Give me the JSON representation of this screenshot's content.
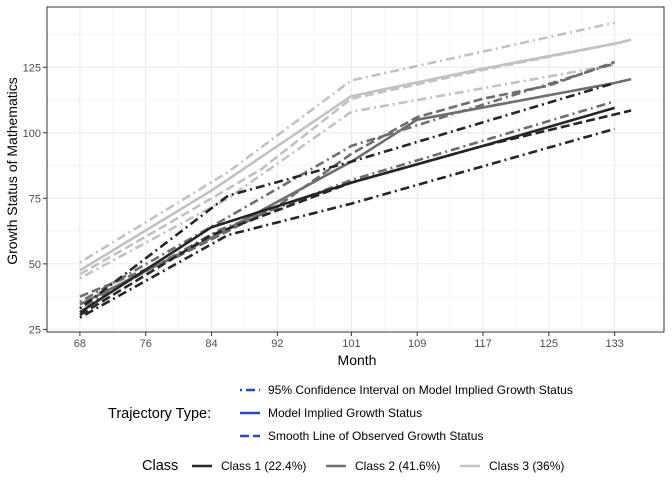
{
  "chart_data": {
    "type": "line",
    "xlabel": "Month",
    "ylabel": "Growth Status of Mathematics",
    "xlim": [
      64,
      139
    ],
    "ylim": [
      24,
      148
    ],
    "x_ticks": [
      68,
      76,
      84,
      92,
      101,
      109,
      117,
      125,
      133
    ],
    "y_ticks": [
      25,
      50,
      75,
      100,
      125
    ],
    "grid": true,
    "legend_position": "bottom",
    "legend": {
      "linetype_title": "Trajectory Type:",
      "linetype_entries": [
        {
          "label": "95% Confidence Interval on Model Implied Growth Status",
          "dash": "dotdash"
        },
        {
          "label": "Model Implied Growth Status",
          "dash": "solid"
        },
        {
          "label": "Smooth Line of Observed Growth Status",
          "dash": "dashed"
        }
      ],
      "color_title": "Class",
      "color_entries": [
        {
          "label": "Class 1 (22.4%)",
          "color": "#262626"
        },
        {
          "label": "Class 2 (41.6%)",
          "color": "#6e6e6e"
        },
        {
          "label": "Class 3 (36%)",
          "color": "#c2c2c2"
        }
      ]
    },
    "series": [
      {
        "class": "Class 3 (36%)",
        "color": "#c2c2c2",
        "trajectory": "95% Confidence Interval on Model Implied Growth Status",
        "dash": "dotdash",
        "x": [
          68,
          86,
          101,
          133
        ],
        "y": [
          50.5,
          85,
          120,
          142
        ]
      },
      {
        "class": "Class 3 (36%)",
        "color": "#c2c2c2",
        "trajectory": "95% Confidence Interval on Model Implied Growth Status",
        "dash": "dotdash",
        "x": [
          68,
          86,
          101,
          133
        ],
        "y": [
          44.5,
          75,
          108,
          126
        ]
      },
      {
        "class": "Class 3 (36%)",
        "color": "#c2c2c2",
        "trajectory": "Smooth Line of Observed Growth Status",
        "dash": "dashed",
        "x": [
          68,
          78,
          90,
          101,
          117,
          133
        ],
        "y": [
          46,
          64,
          86,
          113,
          124,
          134
        ]
      },
      {
        "class": "Class 3 (36%)",
        "color": "#c2c2c2",
        "trajectory": "Model Implied Growth Status",
        "dash": "solid",
        "x": [
          68,
          84,
          101,
          117,
          133,
          135
        ],
        "y": [
          47.5,
          78,
          114,
          124.5,
          134,
          135.5
        ]
      },
      {
        "class": "Class 2 (41.6%)",
        "color": "#6e6e6e",
        "trajectory": "95% Confidence Interval on Model Implied Growth Status",
        "dash": "dotdash",
        "x": [
          68,
          85,
          101,
          133
        ],
        "y": [
          35.5,
          66,
          95,
          126.5
        ]
      },
      {
        "class": "Class 2 (41.6%)",
        "color": "#6e6e6e",
        "trajectory": "95% Confidence Interval on Model Implied Growth Status",
        "dash": "dotdash",
        "x": [
          68,
          85,
          101,
          133
        ],
        "y": [
          33,
          63,
          82,
          112
        ]
      },
      {
        "class": "Class 2 (41.6%)",
        "color": "#6e6e6e",
        "trajectory": "Smooth Line of Observed Growth Status",
        "dash": "dashed",
        "x": [
          68,
          80,
          92,
          101,
          109,
          117,
          125,
          133
        ],
        "y": [
          37.5,
          53,
          72,
          92,
          106,
          113,
          118,
          127
        ]
      },
      {
        "class": "Class 2 (41.6%)",
        "color": "#6e6e6e",
        "trajectory": "Model Implied Growth Status",
        "dash": "solid",
        "x": [
          68,
          84,
          101,
          109,
          133,
          135
        ],
        "y": [
          34.5,
          60,
          89,
          105,
          119,
          120.5
        ]
      },
      {
        "class": "Class 1 (22.4%)",
        "color": "#262626",
        "trajectory": "95% Confidence Interval on Model Implied Growth Status",
        "dash": "dotdash",
        "x": [
          68,
          86,
          101,
          133
        ],
        "y": [
          33,
          76,
          89,
          119
        ]
      },
      {
        "class": "Class 1 (22.4%)",
        "color": "#262626",
        "trajectory": "95% Confidence Interval on Model Implied Growth Status",
        "dash": "dotdash",
        "x": [
          68,
          86,
          101,
          133
        ],
        "y": [
          29.5,
          61,
          73,
          101.5
        ]
      },
      {
        "class": "Class 1 (22.4%)",
        "color": "#262626",
        "trajectory": "Smooth Line of Observed Growth Status",
        "dash": "dashed",
        "x": [
          68,
          84,
          101,
          117,
          135
        ],
        "y": [
          30.5,
          61,
          81,
          95,
          108.5
        ]
      },
      {
        "class": "Class 1 (22.4%)",
        "color": "#262626",
        "trajectory": "Model Implied Growth Status",
        "dash": "solid",
        "x": [
          68,
          84,
          101,
          117,
          133
        ],
        "y": [
          31.5,
          64,
          81,
          95,
          109.5
        ]
      }
    ]
  }
}
